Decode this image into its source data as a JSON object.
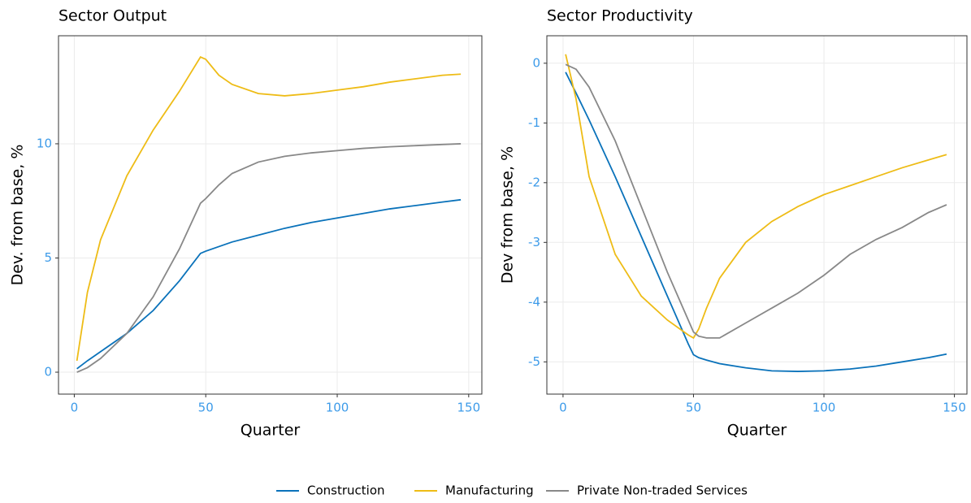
{
  "chart_data": [
    {
      "type": "line",
      "title": "Sector Output",
      "x_label": "Quarter",
      "y_label": "Dev. from base, %",
      "x": [
        1,
        5,
        10,
        20,
        30,
        40,
        48,
        50,
        55,
        60,
        70,
        80,
        90,
        100,
        110,
        120,
        130,
        140,
        147
      ],
      "series": [
        {
          "name": "Construction",
          "color": "#0a72ba",
          "values": [
            0.15,
            0.5,
            0.9,
            1.7,
            2.7,
            4.0,
            5.2,
            5.3,
            5.5,
            5.7,
            6.0,
            6.3,
            6.55,
            6.75,
            6.95,
            7.15,
            7.3,
            7.45,
            7.55
          ]
        },
        {
          "name": "Manufacturing",
          "color": "#eebc16",
          "values": [
            0.5,
            3.5,
            5.8,
            8.6,
            10.6,
            12.3,
            13.8,
            13.7,
            13.0,
            12.6,
            12.2,
            12.1,
            12.2,
            12.35,
            12.5,
            12.7,
            12.85,
            13.0,
            13.05
          ]
        },
        {
          "name": "Private Non-traded Services",
          "color": "#888888",
          "values": [
            0.0,
            0.2,
            0.6,
            1.7,
            3.3,
            5.4,
            7.4,
            7.6,
            8.2,
            8.7,
            9.2,
            9.45,
            9.6,
            9.7,
            9.8,
            9.87,
            9.92,
            9.97,
            10.0
          ]
        }
      ],
      "xlim": [
        -6,
        155
      ],
      "xticks": [
        0,
        50,
        100,
        150
      ],
      "ylim": [
        -0.96,
        14.73
      ],
      "yticks": [
        0,
        5,
        10
      ],
      "grid": true
    },
    {
      "type": "line",
      "title": "Sector Productivity",
      "x_label": "Quarter",
      "y_label": "Dev from base, %",
      "x": [
        1,
        5,
        10,
        20,
        30,
        40,
        48,
        50,
        52,
        55,
        60,
        70,
        80,
        90,
        100,
        110,
        120,
        130,
        140,
        147
      ],
      "series": [
        {
          "name": "Construction",
          "color": "#0a72ba",
          "values": [
            -0.15,
            -0.5,
            -0.95,
            -1.9,
            -2.9,
            -3.9,
            -4.7,
            -4.88,
            -4.93,
            -4.97,
            -5.03,
            -5.1,
            -5.15,
            -5.16,
            -5.15,
            -5.12,
            -5.07,
            -5.0,
            -4.93,
            -4.87
          ]
        },
        {
          "name": "Manufacturing",
          "color": "#eebc16",
          "values": [
            0.15,
            -0.6,
            -1.9,
            -3.2,
            -3.9,
            -4.3,
            -4.55,
            -4.6,
            -4.45,
            -4.1,
            -3.6,
            -3.0,
            -2.65,
            -2.4,
            -2.2,
            -2.05,
            -1.9,
            -1.75,
            -1.62,
            -1.53
          ]
        },
        {
          "name": "Private Non-traded Services",
          "color": "#888888",
          "values": [
            -0.02,
            -0.1,
            -0.4,
            -1.3,
            -2.4,
            -3.5,
            -4.3,
            -4.5,
            -4.57,
            -4.6,
            -4.6,
            -4.35,
            -4.1,
            -3.85,
            -3.55,
            -3.2,
            -2.95,
            -2.75,
            -2.5,
            -2.37
          ]
        }
      ],
      "xlim": [
        -6.2,
        154.8
      ],
      "xticks": [
        0,
        50,
        100,
        150
      ],
      "ylim": [
        -5.54,
        0.46
      ],
      "yticks": [
        0,
        -1,
        -2,
        -3,
        -4,
        -5
      ],
      "grid": true
    }
  ]
}
